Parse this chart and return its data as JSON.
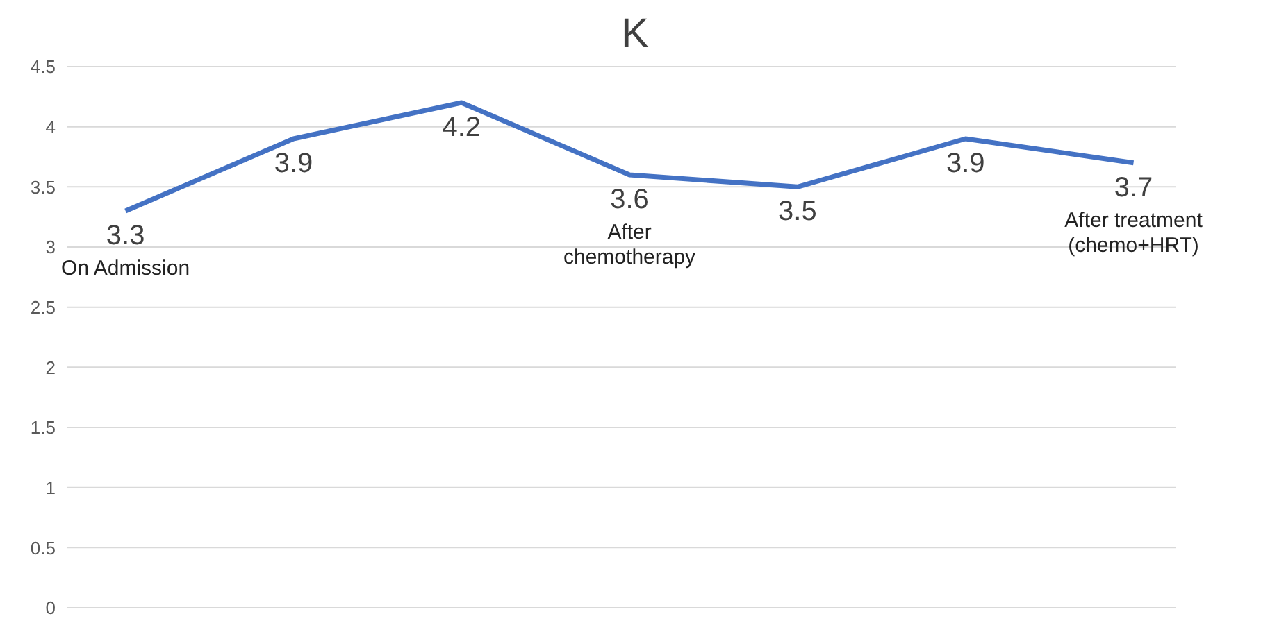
{
  "chart_data": {
    "type": "line",
    "title": "K",
    "categories": [
      "On Admission",
      null,
      null,
      "After chemotherapy",
      null,
      null,
      "After treatment (chemo+HRT)"
    ],
    "series": [
      {
        "color": "#4472c4",
        "values": [
          3.3,
          3.9,
          4.2,
          3.6,
          3.5,
          3.9,
          3.7
        ]
      }
    ],
    "ylim": [
      0,
      4.5
    ],
    "yticks": [
      0,
      0.5,
      1,
      1.5,
      2,
      2.5,
      3,
      3.5,
      4,
      4.5
    ],
    "grid": "y",
    "data_labels": true,
    "marker": "none",
    "line_style": "solid"
  }
}
